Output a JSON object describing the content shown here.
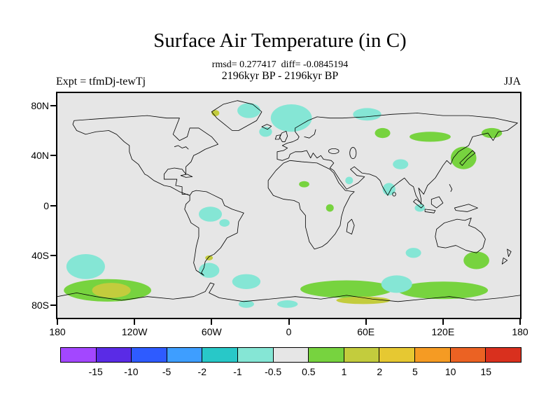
{
  "title": "Surface Air Temperature (in C)",
  "stats_line": "rmsd= 0.277417  diff= -0.0845194",
  "period_line": "2196kyr BP - 2196kyr BP",
  "experiment_label": "Expt = tfmDj-tewTj",
  "season_label": "JJA",
  "chart_data": {
    "type": "heatmap",
    "subtype": "filled-contour world map of temperature difference",
    "units": "C",
    "map_background_color": "#E6E6E6",
    "coastline_color": "#000000",
    "lon_range": [
      -180,
      180
    ],
    "lat_range": [
      -90,
      90
    ],
    "x_ticks": [
      {
        "label": "180",
        "lon": -180
      },
      {
        "label": "120W",
        "lon": -120
      },
      {
        "label": "60W",
        "lon": -60
      },
      {
        "label": "0",
        "lon": 0
      },
      {
        "label": "60E",
        "lon": 60
      },
      {
        "label": "120E",
        "lon": 120
      },
      {
        "label": "180",
        "lon": 180
      }
    ],
    "y_ticks": [
      {
        "label": "80N",
        "lat": 80
      },
      {
        "label": "40N",
        "lat": 40
      },
      {
        "label": "0",
        "lat": 0
      },
      {
        "label": "40S",
        "lat": -40
      },
      {
        "label": "80S",
        "lat": -80
      }
    ],
    "colorbar": {
      "labels": [
        "-15",
        "-10",
        "-5",
        "-2",
        "-1",
        "-0.5",
        "0.5",
        "1",
        "2",
        "5",
        "10",
        "15"
      ],
      "colors": [
        "#A347FF",
        "#5A2BE6",
        "#2E5BFF",
        "#3E9EFF",
        "#28C8C8",
        "#85E6D5",
        "#E6E6E6",
        "#77D33F",
        "#C3CC3D",
        "#E6C832",
        "#F59B23",
        "#EB6223",
        "#D9301E"
      ]
    },
    "anomaly_levels": {
      "m1": {
        "color": "#85E6D5",
        "range": "-1 to -0.5"
      },
      "p1": {
        "color": "#77D33F",
        "range": "0.5 to 1"
      },
      "p2": {
        "color": "#C3CC3D",
        "range": "1 to 2"
      }
    },
    "anomalies": [
      {
        "lon": -31,
        "lat": 76,
        "rlon": 9,
        "rlat": 6,
        "level": "m1"
      },
      {
        "lon": 2,
        "lat": 70,
        "rlon": 16,
        "rlat": 11,
        "level": "m1"
      },
      {
        "lon": -18,
        "lat": 59,
        "rlon": 5,
        "rlat": 4,
        "level": "m1"
      },
      {
        "lon": 61,
        "lat": 73,
        "rlon": 11,
        "rlat": 5,
        "level": "m1"
      },
      {
        "lon": -57,
        "lat": 74,
        "rlon": 3,
        "rlat": 2.5,
        "level": "p2"
      },
      {
        "lon": 73,
        "lat": 58,
        "rlon": 6,
        "rlat": 4,
        "level": "p1"
      },
      {
        "lon": 110,
        "lat": 55,
        "rlon": 16,
        "rlat": 4,
        "level": "p1"
      },
      {
        "lon": 158,
        "lat": 58,
        "rlon": 8,
        "rlat": 4,
        "level": "p1"
      },
      {
        "lon": 136,
        "lat": 38,
        "rlon": 10,
        "rlat": 9,
        "level": "p1"
      },
      {
        "lon": 87,
        "lat": 33,
        "rlon": 6,
        "rlat": 4,
        "level": "m1"
      },
      {
        "lon": 78,
        "lat": 13,
        "rlon": 5,
        "rlat": 5,
        "level": "m1"
      },
      {
        "lon": 47,
        "lat": 20,
        "rlon": 3,
        "rlat": 3,
        "level": "m1"
      },
      {
        "lon": 12,
        "lat": 17,
        "rlon": 4,
        "rlat": 2.5,
        "level": "p1"
      },
      {
        "lon": 32,
        "lat": -2,
        "rlon": 3,
        "rlat": 3,
        "level": "p1"
      },
      {
        "lon": 102,
        "lat": -2,
        "rlon": 4,
        "rlat": 3,
        "level": "m1"
      },
      {
        "lon": -61,
        "lat": -7,
        "rlon": 9,
        "rlat": 6,
        "level": "m1"
      },
      {
        "lon": -50,
        "lat": -14,
        "rlon": 4,
        "rlat": 3,
        "level": "m1"
      },
      {
        "lon": -62,
        "lat": -42,
        "rlon": 3,
        "rlat": 2,
        "level": "p2"
      },
      {
        "lon": -62,
        "lat": -52,
        "rlon": 8,
        "rlat": 6,
        "level": "m1"
      },
      {
        "lon": -158,
        "lat": -49,
        "rlon": 15,
        "rlat": 10,
        "level": "m1"
      },
      {
        "lon": -141,
        "lat": -68,
        "rlon": 34,
        "rlat": 9,
        "level": "p1"
      },
      {
        "lon": -138,
        "lat": -68,
        "rlon": 15,
        "rlat": 6,
        "level": "p2"
      },
      {
        "lon": -33,
        "lat": -61,
        "rlon": 11,
        "rlat": 6,
        "level": "m1"
      },
      {
        "lon": -33,
        "lat": -79,
        "rlon": 6,
        "rlat": 3,
        "level": "m1"
      },
      {
        "lon": -1,
        "lat": -79,
        "rlon": 8,
        "rlat": 3,
        "level": "m1"
      },
      {
        "lon": 45,
        "lat": -67,
        "rlon": 36,
        "rlat": 7,
        "level": "p1"
      },
      {
        "lon": 120,
        "lat": -68,
        "rlon": 35,
        "rlat": 7,
        "level": "p1"
      },
      {
        "lon": 58,
        "lat": -76,
        "rlon": 21,
        "rlat": 3,
        "level": "p2"
      },
      {
        "lon": 84,
        "lat": -63,
        "rlon": 12,
        "rlat": 7,
        "level": "m1"
      },
      {
        "lon": 97,
        "lat": -38,
        "rlon": 6,
        "rlat": 4,
        "level": "m1"
      },
      {
        "lon": 146,
        "lat": -44,
        "rlon": 10,
        "rlat": 7,
        "level": "p1"
      }
    ]
  }
}
